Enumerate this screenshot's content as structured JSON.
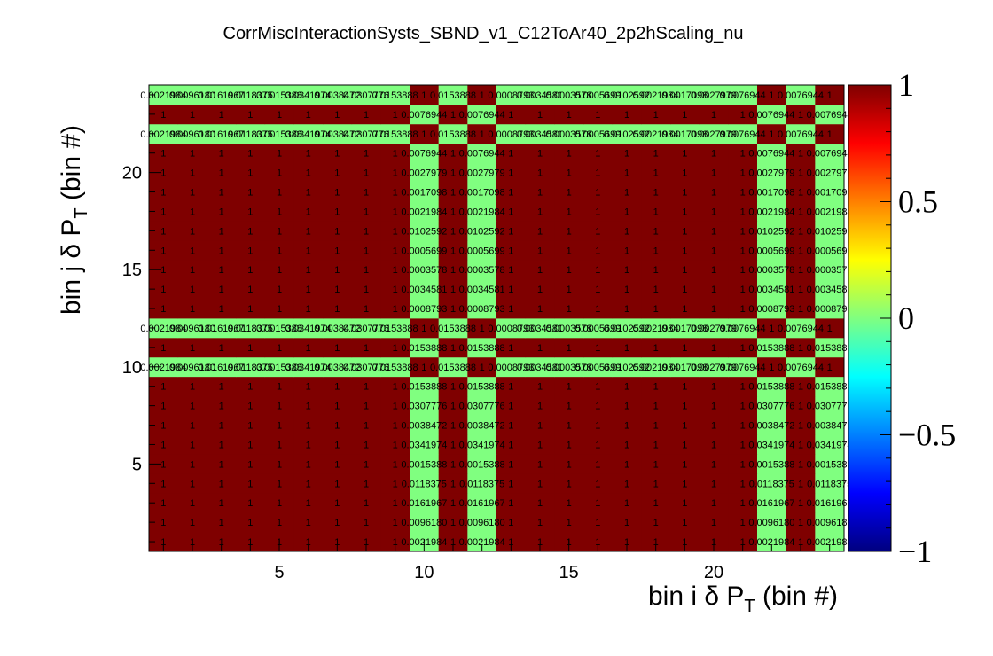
{
  "chart_data": {
    "type": "heatmap",
    "title": "CorrMiscInteractionSysts_SBND_v1_C12ToAr40_2p2hScaling_nu",
    "xlabel": {
      "main": "bin i  δ P",
      "sub": "T",
      "suffix": " (bin #)"
    },
    "ylabel": {
      "main": "bin j  δ P",
      "sub": "T",
      "suffix": " (bin #)"
    },
    "nbins_x": 24,
    "nbins_y": 24,
    "xlim": [
      0.5,
      24.5
    ],
    "ylim": [
      0.5,
      24.5
    ],
    "x_ticks": [
      5,
      10,
      15,
      20
    ],
    "y_ticks": [
      5,
      10,
      15,
      20
    ],
    "zlim": [
      -1,
      1
    ],
    "z_ticks": [
      "1",
      "0.5",
      "0",
      "−0.5",
      "−1"
    ],
    "palette": [
      "#00007f",
      "#0000ff",
      "#0080ff",
      "#00ffff",
      "#80ff80",
      "#ffff00",
      "#ff8000",
      "#ff0000",
      "#7f0000"
    ],
    "cell_value_labels": {
      "x": [
        "0.0021984",
        "0.0096180",
        "0.0161967",
        "0.0118375",
        "0.0015388",
        "0.0341974",
        "0.0038472",
        "0.0307776",
        "0.0153888",
        "1",
        "0.0153888",
        "1",
        "0.0008793",
        "0.0034581",
        "0.0003578",
        "0.0005699",
        "0.0102592",
        "0.0021984",
        "0.0017098",
        "0.0027979",
        "0.0076944",
        "1",
        "0.0076944",
        "1"
      ]
    },
    "special_rows": [
      10,
      12,
      22,
      24
    ],
    "special_cols": [
      10,
      12,
      22,
      24
    ]
  }
}
